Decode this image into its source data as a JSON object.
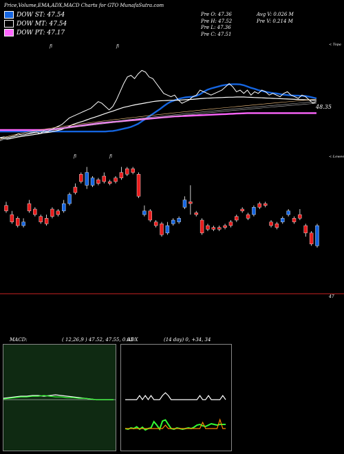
{
  "header": {
    "title": "Price,Volume,EMA,ADX,MACD Charts for GTO MunafaSutra.com",
    "dow_st": "DOW ST: 47.54",
    "dow_mt": "DOW MT: 47.54",
    "dow_pt": "DOW PT: 47.17",
    "prev_open": "Pre   O: 47.36",
    "prev_high": "Pre   H: 47.52",
    "prev_low": "Pre   L: 47.36",
    "prev_close": "Pre   C: 47.51",
    "avg_volume": "Avg V: 0.026   M",
    "prev_volume": "Pre   V: 0.214   M",
    "colors": {
      "st": "#1565e0",
      "mt": "#ffffff",
      "pt": "#ff66ff"
    }
  },
  "price_labels": {
    "current": "48.35",
    "top": "< Topa",
    "low": "< Lowes",
    "bottom": "47"
  },
  "markers": [
    "fi",
    "fi",
    "fi",
    "fi"
  ],
  "chart_data": [
    {
      "type": "line",
      "title": "",
      "series": [
        {
          "name": "DOW ST",
          "color": "#1565e0",
          "values": [
            47.08,
            47.08,
            47.08,
            47.08,
            47.08,
            47.08,
            47.08,
            47.08,
            47.08,
            47.08,
            47.08,
            47.08,
            47.08,
            47.08,
            47.08,
            47.08,
            47.08,
            47.08,
            47.08,
            47.08,
            47.08,
            47.08,
            47.08,
            47.08,
            47.08,
            47.08,
            47.08,
            47.08,
            47.08,
            47.08,
            47.1,
            47.11,
            47.15,
            47.2,
            47.25,
            47.3,
            47.36,
            47.45,
            47.55,
            47.7,
            47.85,
            48.0,
            48.15,
            48.3,
            48.45,
            48.62,
            48.78,
            48.9,
            48.98,
            49.06,
            49.12,
            49.16,
            49.18,
            49.2,
            49.25,
            49.35,
            49.5,
            49.62,
            49.7,
            49.76,
            49.82,
            49.88,
            49.92,
            49.95,
            49.96,
            49.96,
            49.95,
            49.9,
            49.82,
            49.74,
            49.68,
            49.6,
            49.55,
            49.5,
            49.46,
            49.42,
            49.4,
            49.36,
            49.32,
            49.3,
            49.28,
            49.27,
            49.26,
            49.25,
            49.24,
            49.2,
            49.15,
            49.1
          ]
        },
        {
          "name": "DOW MT",
          "color": "#ffffff",
          "values": [
            46.7,
            46.65,
            46.62,
            46.65,
            46.7,
            46.75,
            46.78,
            46.82,
            46.85,
            46.88,
            46.92,
            46.95,
            47.0,
            47.02,
            47.05,
            47.1,
            47.15,
            47.2,
            47.3,
            47.4,
            47.5,
            47.58,
            47.65,
            47.72,
            47.8,
            47.88,
            47.95,
            48.02,
            48.1,
            48.18,
            48.25,
            48.32,
            48.4,
            48.48,
            48.55,
            48.6,
            48.65,
            48.7,
            48.74,
            48.78,
            48.82,
            48.86,
            48.9,
            48.93,
            48.95,
            48.96,
            48.97,
            48.98,
            48.98,
            48.99,
            49.0,
            49.02,
            49.03,
            49.04,
            49.06,
            49.08,
            49.1,
            49.11,
            49.12,
            49.13,
            49.14,
            49.15,
            49.16,
            49.17,
            49.17,
            49.18,
            49.18,
            49.18,
            49.17,
            49.16,
            49.15,
            49.14,
            49.13,
            49.12,
            49.11,
            49.1,
            49.09,
            49.08,
            49.07,
            49.06,
            49.05,
            49.04,
            49.03,
            49.02,
            49.01,
            49.0,
            48.99,
            48.98
          ]
        },
        {
          "name": "DOW PT",
          "color": "#ff66ff",
          "values": [
            47.17,
            47.17,
            47.17,
            47.17,
            47.17,
            47.17,
            47.17,
            47.17,
            47.17,
            47.17,
            47.17,
            47.17,
            47.18,
            47.19,
            47.2,
            47.22,
            47.25,
            47.28,
            47.31,
            47.34,
            47.37,
            47.4,
            47.43,
            47.46,
            47.49,
            47.52,
            47.55,
            47.58,
            47.6,
            47.62,
            47.64,
            47.66,
            47.68,
            47.7,
            47.72,
            47.74,
            47.76,
            47.78,
            47.8,
            47.82,
            47.84,
            47.86,
            47.88,
            47.9,
            47.92,
            47.94,
            47.96,
            47.98,
            48.0,
            48.01,
            48.02,
            48.03,
            48.04,
            48.05,
            48.06,
            48.07,
            48.08,
            48.09,
            48.1,
            48.11,
            48.12,
            48.13,
            48.14,
            48.15,
            48.16,
            48.17,
            48.18,
            48.19,
            48.2,
            48.2,
            48.2,
            48.2,
            48.2,
            48.2,
            48.2,
            48.2,
            48.2,
            48.2,
            48.2,
            48.2,
            48.2,
            48.2,
            48.2,
            48.2,
            48.2,
            48.2,
            48.2,
            48.2
          ]
        },
        {
          "name": "Price",
          "color": "#ffffff",
          "values": [
            46.7,
            46.75,
            46.72,
            46.75,
            46.8,
            46.95,
            46.85,
            46.9,
            46.95,
            47.0,
            47.05,
            46.95,
            47.1,
            47.05,
            47.2,
            47.3,
            47.4,
            47.5,
            47.7,
            47.9,
            48.0,
            48.1,
            48.2,
            48.3,
            48.4,
            48.5,
            48.7,
            48.9,
            48.8,
            48.6,
            48.4,
            48.6,
            49.0,
            49.5,
            50.0,
            50.4,
            50.5,
            50.3,
            50.6,
            50.8,
            50.7,
            50.4,
            50.3,
            50.0,
            49.7,
            49.4,
            49.3,
            49.2,
            49.3,
            49.0,
            48.8,
            48.9,
            49.0,
            49.2,
            49.3,
            49.6,
            49.5,
            49.4,
            49.3,
            49.4,
            49.5,
            49.6,
            49.8,
            50.0,
            49.8,
            49.5,
            49.6,
            49.4,
            49.6,
            49.3,
            49.5,
            49.4,
            49.6,
            49.5,
            49.3,
            49.4,
            49.3,
            49.2,
            49.4,
            49.5,
            49.3,
            49.2,
            49.1,
            49.3,
            49.2,
            49.0,
            48.8,
            48.9
          ]
        }
      ]
    },
    {
      "type": "candlestick",
      "title": "",
      "candles": [
        {
          "o": 47.7,
          "c": 47.85,
          "h": 47.95,
          "l": 47.65,
          "up": false
        },
        {
          "o": 47.4,
          "c": 47.6,
          "h": 47.7,
          "l": 47.35,
          "up": false
        },
        {
          "o": 47.5,
          "c": 47.3,
          "h": 47.55,
          "l": 47.25,
          "up": false
        },
        {
          "o": 47.3,
          "c": 47.4,
          "h": 47.5,
          "l": 47.25,
          "up": true
        },
        {
          "o": 47.7,
          "c": 47.9,
          "h": 48.0,
          "l": 47.65,
          "up": false
        },
        {
          "o": 47.6,
          "c": 47.75,
          "h": 47.8,
          "l": 47.55,
          "up": false
        },
        {
          "o": 47.55,
          "c": 47.4,
          "h": 47.6,
          "l": 47.35,
          "up": false
        },
        {
          "o": 47.35,
          "c": 47.5,
          "h": 47.6,
          "l": 47.3,
          "up": false
        },
        {
          "o": 47.55,
          "c": 47.75,
          "h": 47.8,
          "l": 47.5,
          "up": false
        },
        {
          "o": 47.6,
          "c": 47.7,
          "h": 47.75,
          "l": 47.55,
          "up": false
        },
        {
          "o": 47.7,
          "c": 47.9,
          "h": 48.0,
          "l": 47.65,
          "up": true
        },
        {
          "o": 47.9,
          "c": 48.15,
          "h": 48.2,
          "l": 47.85,
          "up": true
        },
        {
          "o": 48.2,
          "c": 48.35,
          "h": 48.45,
          "l": 48.15,
          "up": false
        },
        {
          "o": 48.5,
          "c": 48.7,
          "h": 48.75,
          "l": 48.45,
          "up": false
        },
        {
          "o": 48.4,
          "c": 48.75,
          "h": 48.9,
          "l": 48.3,
          "up": true
        },
        {
          "o": 48.4,
          "c": 48.6,
          "h": 48.65,
          "l": 48.35,
          "up": true
        },
        {
          "o": 48.55,
          "c": 48.45,
          "h": 48.6,
          "l": 48.4,
          "up": false
        },
        {
          "o": 48.5,
          "c": 48.65,
          "h": 48.75,
          "l": 48.45,
          "up": false
        },
        {
          "o": 48.45,
          "c": 48.5,
          "h": 48.55,
          "l": 48.4,
          "up": false
        },
        {
          "o": 48.5,
          "c": 48.6,
          "h": 48.65,
          "l": 48.45,
          "up": false
        },
        {
          "o": 48.6,
          "c": 48.75,
          "h": 48.9,
          "l": 48.55,
          "up": false
        },
        {
          "o": 48.7,
          "c": 48.85,
          "h": 48.9,
          "l": 48.65,
          "up": false
        },
        {
          "o": 48.85,
          "c": 48.75,
          "h": 48.9,
          "l": 48.7,
          "up": false
        },
        {
          "o": 48.7,
          "c": 48.1,
          "h": 48.75,
          "l": 48.05,
          "up": false
        },
        {
          "o": 47.6,
          "c": 47.7,
          "h": 47.85,
          "l": 47.55,
          "up": true
        },
        {
          "o": 47.7,
          "c": 47.45,
          "h": 47.75,
          "l": 47.4,
          "up": false
        },
        {
          "o": 47.4,
          "c": 47.3,
          "h": 47.45,
          "l": 47.25,
          "up": false
        },
        {
          "o": 47.35,
          "c": 47.05,
          "h": 47.4,
          "l": 47.0,
          "up": false
        },
        {
          "o": 47.1,
          "c": 47.3,
          "h": 47.4,
          "l": 47.05,
          "up": true
        },
        {
          "o": 47.35,
          "c": 47.45,
          "h": 47.5,
          "l": 47.3,
          "up": true
        },
        {
          "o": 47.4,
          "c": 47.5,
          "h": 47.55,
          "l": 47.35,
          "up": true
        },
        {
          "o": 47.8,
          "c": 48.0,
          "h": 48.1,
          "l": 47.75,
          "up": true
        },
        {
          "o": 47.95,
          "c": 47.9,
          "h": 48.4,
          "l": 47.6,
          "up": false
        },
        {
          "o": 47.6,
          "c": 47.65,
          "h": 47.7,
          "l": 47.55,
          "up": false
        },
        {
          "o": 47.45,
          "c": 47.1,
          "h": 47.5,
          "l": 47.05,
          "up": false
        },
        {
          "o": 47.2,
          "c": 47.3,
          "h": 47.35,
          "l": 47.15,
          "up": false
        },
        {
          "o": 47.2,
          "c": 47.25,
          "h": 47.3,
          "l": 47.15,
          "up": false
        },
        {
          "o": 47.25,
          "c": 47.2,
          "h": 47.3,
          "l": 47.15,
          "up": false
        },
        {
          "o": 47.25,
          "c": 47.3,
          "h": 47.35,
          "l": 47.2,
          "up": false
        },
        {
          "o": 47.3,
          "c": 47.4,
          "h": 47.45,
          "l": 47.25,
          "up": false
        },
        {
          "o": 47.45,
          "c": 47.55,
          "h": 47.6,
          "l": 47.4,
          "up": false
        },
        {
          "o": 47.7,
          "c": 47.75,
          "h": 47.8,
          "l": 47.65,
          "up": false
        },
        {
          "o": 47.5,
          "c": 47.6,
          "h": 47.65,
          "l": 47.45,
          "up": false
        },
        {
          "o": 47.6,
          "c": 47.8,
          "h": 47.85,
          "l": 47.55,
          "up": true
        },
        {
          "o": 47.8,
          "c": 47.9,
          "h": 47.95,
          "l": 47.75,
          "up": false
        },
        {
          "o": 47.85,
          "c": 47.9,
          "h": 47.95,
          "l": 47.8,
          "up": false
        },
        {
          "o": 47.3,
          "c": 47.4,
          "h": 47.45,
          "l": 47.25,
          "up": false
        },
        {
          "o": 47.25,
          "c": 47.35,
          "h": 47.4,
          "l": 47.2,
          "up": false
        },
        {
          "o": 47.4,
          "c": 47.5,
          "h": 47.55,
          "l": 47.35,
          "up": true
        },
        {
          "o": 47.6,
          "c": 47.7,
          "h": 47.75,
          "l": 47.55,
          "up": true
        },
        {
          "o": 47.5,
          "c": 47.4,
          "h": 47.55,
          "l": 47.35,
          "up": false
        },
        {
          "o": 47.6,
          "c": 47.5,
          "h": 47.75,
          "l": 47.45,
          "up": false
        },
        {
          "o": 47.3,
          "c": 47.1,
          "h": 47.35,
          "l": 47.0,
          "up": false
        },
        {
          "o": 47.1,
          "c": 46.8,
          "h": 47.15,
          "l": 46.75,
          "up": false
        },
        {
          "o": 46.75,
          "c": 47.3,
          "h": 47.35,
          "l": 46.7,
          "up": true
        }
      ]
    },
    {
      "type": "line",
      "title": "",
      "series": [
        {
          "name": "",
          "color": "#ffffff",
          "values": [
            0.02,
            0.03,
            0.04,
            0.05,
            0.05,
            0.06,
            0.06,
            0.05,
            0.06,
            0.07,
            0.06,
            0.05,
            0.04,
            0.03,
            0.02,
            0.01,
            0.0,
            0.0,
            0.0,
            0.0
          ]
        },
        {
          "name": "",
          "color": "#33ff33",
          "values": [
            0.01,
            0.02,
            0.03,
            0.04,
            0.04,
            0.05,
            0.05,
            0.06,
            0.05,
            0.04,
            0.04,
            0.03,
            0.03,
            0.02,
            0.02,
            0.01,
            0.0,
            0.0,
            0.0,
            0.0
          ]
        }
      ]
    },
    {
      "type": "line",
      "title": "",
      "series": [
        {
          "name": "",
          "color": "#ffffff",
          "values": [
            20,
            20,
            20,
            20,
            20,
            32,
            20,
            32,
            20,
            32,
            20,
            20,
            20,
            32,
            40,
            32,
            20,
            20,
            20,
            20,
            20,
            20,
            20,
            20,
            20,
            20,
            32,
            20,
            20,
            32,
            20,
            20,
            20,
            20,
            32,
            20
          ]
        },
        {
          "name": "",
          "color": "#33ff33",
          "values": [
            -50,
            -52,
            -48,
            -50,
            -45,
            -52,
            -46,
            -54,
            -50,
            -48,
            -30,
            -40,
            -52,
            -28,
            -25,
            -38,
            -50,
            -52,
            -48,
            -50,
            -52,
            -50,
            -48,
            -50,
            -46,
            -40,
            -38,
            -42,
            -44,
            -40,
            -36,
            -38,
            -40,
            -38,
            -38,
            -38
          ]
        },
        {
          "name": "",
          "color": "#ff8800",
          "values": [
            -50,
            -50,
            -50,
            -50,
            -50,
            -50,
            -50,
            -50,
            -50,
            -50,
            -50,
            -50,
            -50,
            -50,
            -40,
            -50,
            -50,
            -50,
            -50,
            -50,
            -50,
            -50,
            -50,
            -50,
            -50,
            -50,
            -50,
            -32,
            -50,
            -50,
            -50,
            -50,
            -50,
            -24,
            -50,
            -50
          ]
        }
      ]
    }
  ],
  "macd_panel": {
    "label": "MACD:",
    "values": "( 12,26,9 ) 47.52,  47.55,  0.03"
  },
  "adx_panel": {
    "label": "ADX",
    "values": "(14  day) 0,  +34,  34"
  }
}
